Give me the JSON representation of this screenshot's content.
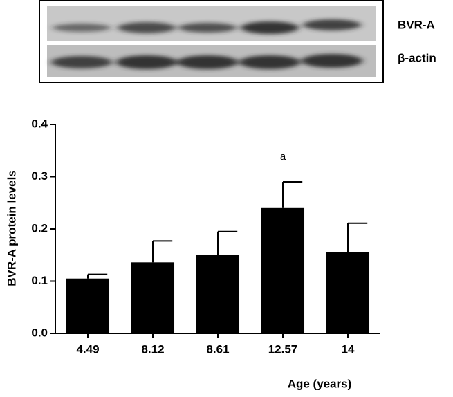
{
  "blot": {
    "labels": [
      "BVR-A",
      "β-actin"
    ]
  },
  "chart_data": {
    "type": "bar",
    "ylabel": "BVR-A protein levels",
    "xlabel": "Age (years)",
    "categories": [
      "4.49",
      "8.12",
      "8.61",
      "12.57",
      "14"
    ],
    "values": [
      0.105,
      0.136,
      0.151,
      0.24,
      0.155
    ],
    "errors": [
      0.008,
      0.041,
      0.044,
      0.05,
      0.056
    ],
    "color": "#000000",
    "ylim": [
      0,
      0.4
    ],
    "yticks": [
      {
        "value": 0,
        "label": "0.0"
      },
      0.1,
      0.2,
      0.3,
      0.4
    ],
    "annotations": [
      {
        "text": "a",
        "x": "12.57"
      }
    ]
  }
}
